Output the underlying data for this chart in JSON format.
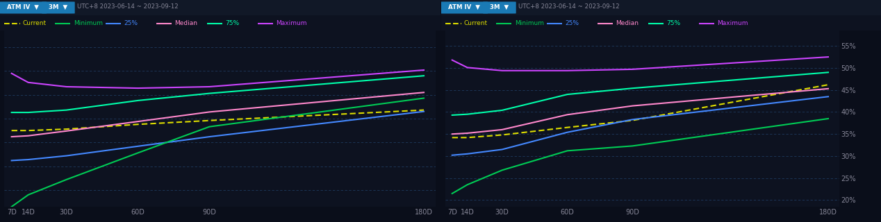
{
  "bg_color": "#0a0e1a",
  "panel_bg": "#0d1220",
  "header_bg": "#111827",
  "grid_color": "#1e3a5f",
  "x_labels": [
    "7D",
    "14D",
    "30D",
    "60D",
    "90D",
    "180D"
  ],
  "x_values": [
    7,
    14,
    30,
    60,
    90,
    180
  ],
  "header_text": "UTC+8 2023-06-14 ~ 2023-09-12",
  "legend_items": [
    "Current",
    "Minimum",
    "25%",
    "Median",
    "75%",
    "Maximum"
  ],
  "legend_colors": [
    "#dddd00",
    "#00cc55",
    "#4488ff",
    "#ff88cc",
    "#00ffaa",
    "#cc44ff"
  ],
  "chart1": {
    "ylim": [
      0.215,
      0.585
    ],
    "yticks": [
      0.25,
      0.3,
      0.35,
      0.4,
      0.45,
      0.5,
      0.55
    ],
    "show_right_labels": false,
    "current": [
      0.375,
      0.375,
      0.378,
      0.388,
      0.396,
      0.418
    ],
    "minimum": [
      0.215,
      0.24,
      0.272,
      0.328,
      0.383,
      0.443
    ],
    "pct25": [
      0.312,
      0.314,
      0.322,
      0.342,
      0.362,
      0.415
    ],
    "median": [
      0.362,
      0.364,
      0.374,
      0.394,
      0.414,
      0.455
    ],
    "pct75": [
      0.413,
      0.413,
      0.418,
      0.438,
      0.453,
      0.49
    ],
    "maximum": [
      0.495,
      0.476,
      0.467,
      0.464,
      0.467,
      0.502
    ]
  },
  "chart2": {
    "ylim": [
      0.185,
      0.585
    ],
    "yticks": [
      0.2,
      0.25,
      0.3,
      0.35,
      0.4,
      0.45,
      0.5,
      0.55
    ],
    "show_right_labels": true,
    "current": [
      0.342,
      0.342,
      0.348,
      0.365,
      0.381,
      0.462
    ],
    "minimum": [
      0.215,
      0.235,
      0.268,
      0.312,
      0.323,
      0.385
    ],
    "pct25": [
      0.302,
      0.305,
      0.315,
      0.354,
      0.383,
      0.435
    ],
    "median": [
      0.35,
      0.352,
      0.36,
      0.394,
      0.414,
      0.453
    ],
    "pct75": [
      0.393,
      0.395,
      0.404,
      0.44,
      0.454,
      0.49
    ],
    "maximum": [
      0.518,
      0.501,
      0.494,
      0.494,
      0.497,
      0.525
    ]
  }
}
